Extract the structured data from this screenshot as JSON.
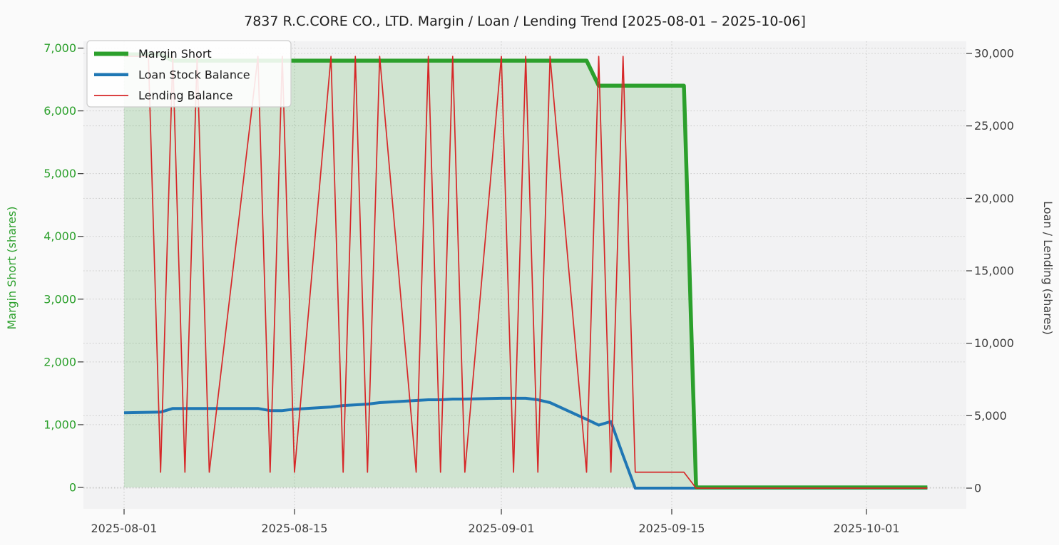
{
  "figure": {
    "title": "7837 R.C.CORE CO., LTD. Margin / Loan / Lending Trend [2025-08-01 – 2025-10-06]",
    "background": "#fafafa",
    "plot_background": "#f2f2f3",
    "gridline_color": "#c9c9c9"
  },
  "axes": {
    "left": {
      "label": "Margin Short (shares)",
      "color": "#2ca02c",
      "ticks": [
        {
          "value": 0,
          "label": "0"
        },
        {
          "value": 1000,
          "label": "1,000"
        },
        {
          "value": 2000,
          "label": "2,000"
        },
        {
          "value": 3000,
          "label": "3,000"
        },
        {
          "value": 4000,
          "label": "4,000"
        },
        {
          "value": 5000,
          "label": "5,000"
        },
        {
          "value": 6000,
          "label": "6,000"
        },
        {
          "value": 7000,
          "label": "7,000"
        }
      ]
    },
    "right": {
      "label": "Loan / Lending (shares)",
      "color": "#3d3d3d",
      "ticks": [
        {
          "value": 0,
          "label": "0"
        },
        {
          "value": 5000,
          "label": "5,000"
        },
        {
          "value": 10000,
          "label": "10,000"
        },
        {
          "value": 15000,
          "label": "15,000"
        },
        {
          "value": 20000,
          "label": "20,000"
        },
        {
          "value": 25000,
          "label": "25,000"
        },
        {
          "value": 30000,
          "label": "30,000"
        }
      ]
    },
    "x": {
      "ticks": [
        {
          "date": "2025-08-01",
          "label": "2025-08-01"
        },
        {
          "date": "2025-08-15",
          "label": "2025-08-15"
        },
        {
          "date": "2025-09-01",
          "label": "2025-09-01"
        },
        {
          "date": "2025-09-15",
          "label": "2025-09-15"
        },
        {
          "date": "2025-10-01",
          "label": "2025-10-01"
        }
      ]
    }
  },
  "legend": {
    "position": "upper-left",
    "items": [
      {
        "label": "Margin Short",
        "color": "#2ca02c",
        "linewidth": 6
      },
      {
        "label": "Loan Stock Balance",
        "color": "#1f77b4",
        "linewidth": 4.5
      },
      {
        "label": "Lending Balance",
        "color": "#d62728",
        "linewidth": 1.8
      }
    ]
  },
  "chart_data": {
    "type": "line",
    "title": "7837 R.C.CORE CO., LTD. Margin / Loan / Lending Trend [2025-08-01 – 2025-10-06]",
    "x_unit": "date",
    "xlim": [
      "2025-07-28",
      "2025-10-09"
    ],
    "left_ylabel": "Margin Short (shares)",
    "right_ylabel": "Loan / Lending (shares)",
    "left_ylim": [
      0,
      7000
    ],
    "right_ylim": [
      0,
      30000
    ],
    "grid": true,
    "legend_position": "upper left",
    "series": [
      {
        "name": "Margin Short",
        "axis": "left",
        "color": "#2ca02c",
        "linewidth": 5.5,
        "fill": true,
        "fill_color": "rgba(44,160,44,0.17)",
        "points": [
          [
            "2025-08-01",
            6900
          ],
          [
            "2025-08-04",
            6900
          ],
          [
            "2025-08-05",
            6800
          ],
          [
            "2025-09-08",
            6800
          ],
          [
            "2025-09-09",
            6400
          ],
          [
            "2025-09-16",
            6400
          ],
          [
            "2025-09-17",
            0
          ],
          [
            "2025-10-06",
            0
          ]
        ]
      },
      {
        "name": "Loan Stock Balance",
        "axis": "right",
        "color": "#1f77b4",
        "linewidth": 4,
        "fill": false,
        "points": [
          [
            "2025-08-01",
            5200
          ],
          [
            "2025-08-04",
            5250
          ],
          [
            "2025-08-05",
            5500
          ],
          [
            "2025-08-08",
            5500
          ],
          [
            "2025-08-12",
            5500
          ],
          [
            "2025-08-13",
            5350
          ],
          [
            "2025-08-14",
            5350
          ],
          [
            "2025-08-15",
            5450
          ],
          [
            "2025-08-18",
            5600
          ],
          [
            "2025-08-19",
            5700
          ],
          [
            "2025-08-20",
            5750
          ],
          [
            "2025-08-21",
            5800
          ],
          [
            "2025-08-22",
            5900
          ],
          [
            "2025-08-25",
            6050
          ],
          [
            "2025-08-26",
            6100
          ],
          [
            "2025-08-27",
            6100
          ],
          [
            "2025-08-28",
            6150
          ],
          [
            "2025-08-29",
            6150
          ],
          [
            "2025-09-01",
            6200
          ],
          [
            "2025-09-02",
            6200
          ],
          [
            "2025-09-03",
            6200
          ],
          [
            "2025-09-04",
            6100
          ],
          [
            "2025-09-05",
            5900
          ],
          [
            "2025-09-08",
            4750
          ],
          [
            "2025-09-09",
            4350
          ],
          [
            "2025-09-10",
            4600
          ],
          [
            "2025-09-11",
            2250
          ],
          [
            "2025-09-12",
            0
          ],
          [
            "2025-10-06",
            0
          ]
        ]
      },
      {
        "name": "Lending Balance",
        "axis": "right",
        "color": "#d62728",
        "linewidth": 1.7,
        "fill": false,
        "points": [
          [
            "2025-08-01",
            29800
          ],
          [
            "2025-08-03",
            29800
          ],
          [
            "2025-08-04",
            1100
          ],
          [
            "2025-08-05",
            29800
          ],
          [
            "2025-08-06",
            1100
          ],
          [
            "2025-08-07",
            29800
          ],
          [
            "2025-08-08",
            1100
          ],
          [
            "2025-08-12",
            29800
          ],
          [
            "2025-08-13",
            1100
          ],
          [
            "2025-08-14",
            29800
          ],
          [
            "2025-08-15",
            1100
          ],
          [
            "2025-08-18",
            29800
          ],
          [
            "2025-08-19",
            1100
          ],
          [
            "2025-08-20",
            29800
          ],
          [
            "2025-08-21",
            1100
          ],
          [
            "2025-08-22",
            29800
          ],
          [
            "2025-08-25",
            1100
          ],
          [
            "2025-08-26",
            29800
          ],
          [
            "2025-08-27",
            1100
          ],
          [
            "2025-08-28",
            29800
          ],
          [
            "2025-08-29",
            1100
          ],
          [
            "2025-09-01",
            29800
          ],
          [
            "2025-09-02",
            1100
          ],
          [
            "2025-09-03",
            29800
          ],
          [
            "2025-09-04",
            1100
          ],
          [
            "2025-09-05",
            29800
          ],
          [
            "2025-09-08",
            1100
          ],
          [
            "2025-09-09",
            29800
          ],
          [
            "2025-09-10",
            1100
          ],
          [
            "2025-09-11",
            29800
          ],
          [
            "2025-09-12",
            1100
          ],
          [
            "2025-09-16",
            1100
          ],
          [
            "2025-09-17",
            0
          ],
          [
            "2025-10-06",
            0
          ]
        ]
      }
    ]
  }
}
